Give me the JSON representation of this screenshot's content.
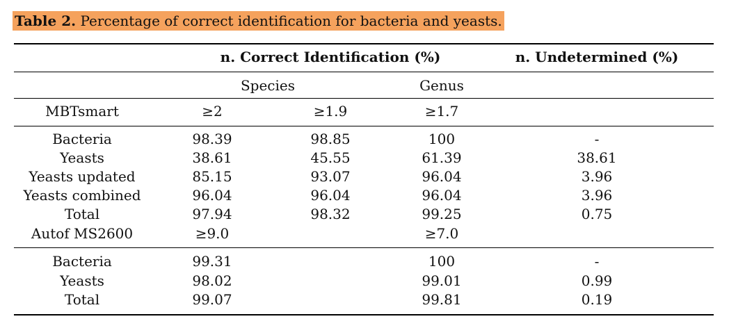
{
  "caption": {
    "label": "Table 2.",
    "text": "Percentage of correct identification for bacteria and yeasts."
  },
  "header": {
    "correct": "n. Correct Identification (%)",
    "undetermined": "n. Undetermined (%)",
    "species": "Species",
    "genus": "Genus"
  },
  "sections": [
    {
      "name": "MBTsmart",
      "thresholds": [
        "≥2",
        "≥1.9",
        "≥1.7"
      ],
      "rows": [
        {
          "label": "Bacteria",
          "s1": "98.39",
          "s2": "98.85",
          "genus": "100",
          "und": "-"
        },
        {
          "label": "Yeasts",
          "s1": "38.61",
          "s2": "45.55",
          "genus": "61.39",
          "und": "38.61"
        },
        {
          "label": "Yeasts updated",
          "s1": "85.15",
          "s2": "93.07",
          "genus": "96.04",
          "und": "3.96"
        },
        {
          "label": "Yeasts combined",
          "s1": "96.04",
          "s2": "96.04",
          "genus": "96.04",
          "und": "3.96"
        },
        {
          "label": "Total",
          "s1": "97.94",
          "s2": "98.32",
          "genus": "99.25",
          "und": "0.75"
        }
      ]
    },
    {
      "name": "Autof MS2600",
      "thresholds": [
        "≥9.0",
        "",
        "≥7.0"
      ],
      "rows": [
        {
          "label": "Bacteria",
          "s1": "99.31",
          "s2": "",
          "genus": "100",
          "und": "-"
        },
        {
          "label": "Yeasts",
          "s1": "98.02",
          "s2": "",
          "genus": "99.01",
          "und": "0.99"
        },
        {
          "label": "Total",
          "s1": "99.07",
          "s2": "",
          "genus": "99.81",
          "und": "0.19"
        }
      ]
    }
  ]
}
